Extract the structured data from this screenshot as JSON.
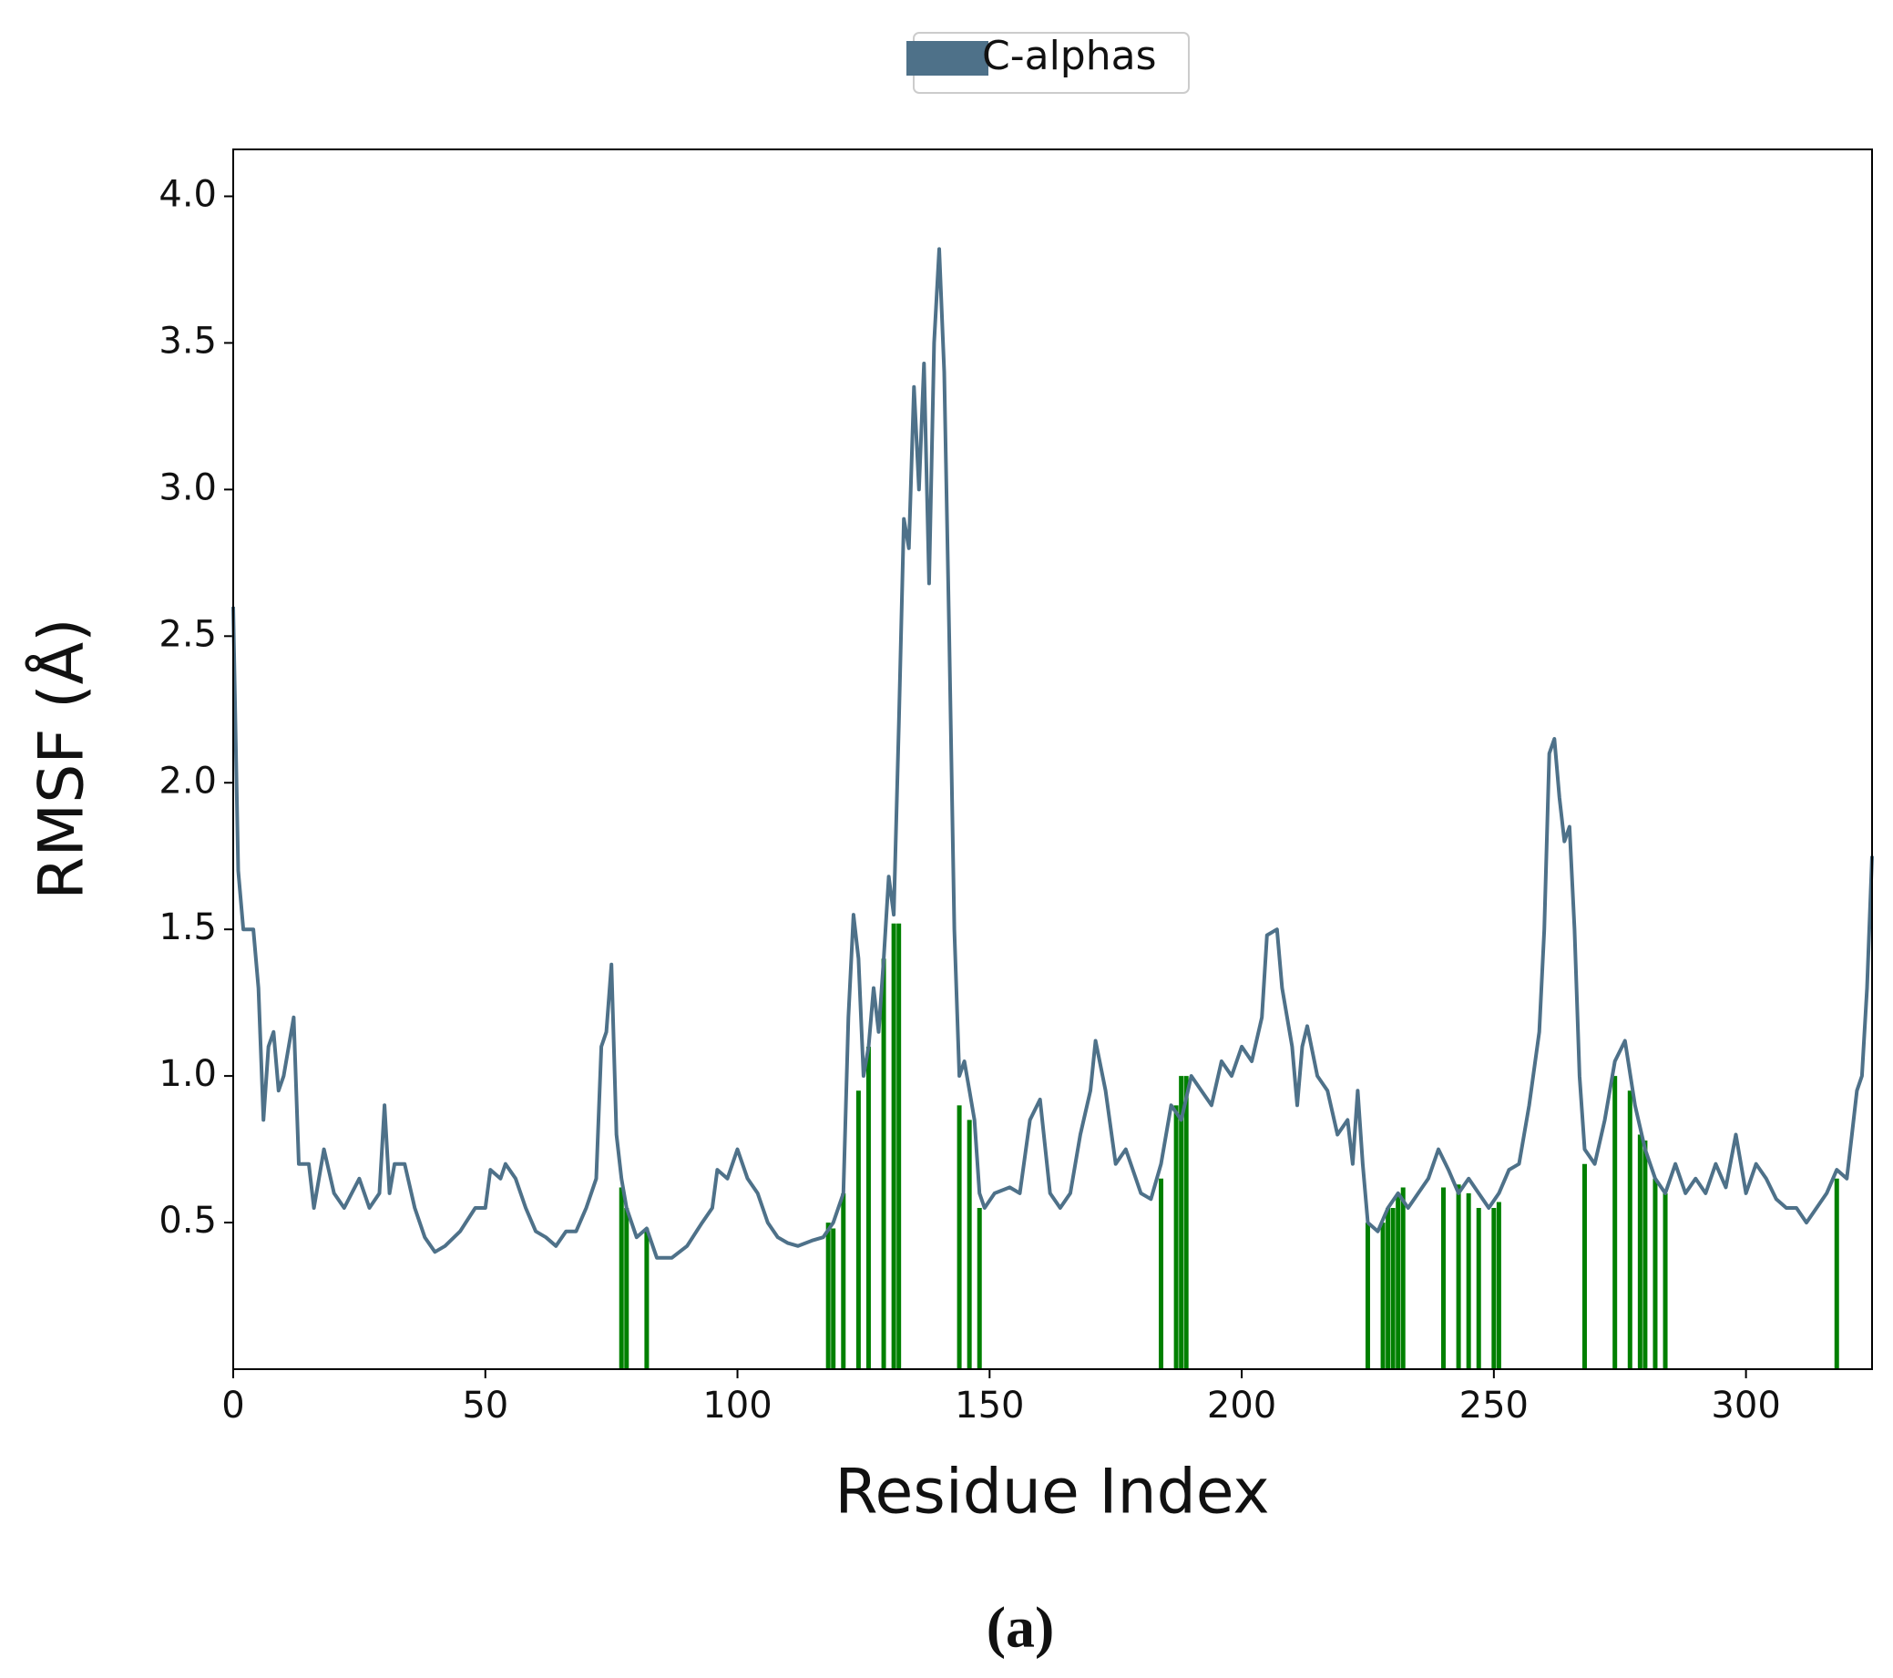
{
  "chart_data": {
    "type": "line",
    "xlabel": "Residue Index",
    "ylabel": "RMSF (Å)",
    "caption": "(a)",
    "xlim": [
      0,
      325
    ],
    "xticks": [
      0,
      50,
      100,
      150,
      200,
      250,
      300
    ],
    "ylim": [
      0,
      4.16
    ],
    "yticks": [
      0.5,
      {
        "value": 1,
        "label": "1.0"
      },
      1.5,
      {
        "value": 2,
        "label": "2.0"
      },
      2.5,
      {
        "value": 3,
        "label": "3.0"
      },
      3.5,
      {
        "value": 4,
        "label": "4.0"
      }
    ],
    "x": [
      0,
      1,
      2,
      4,
      5,
      6,
      7,
      8,
      9,
      10,
      12,
      13,
      15,
      16,
      18,
      20,
      22,
      25,
      27,
      29,
      30,
      31,
      32,
      34,
      36,
      38,
      40,
      42,
      45,
      48,
      50,
      51,
      53,
      54,
      56,
      58,
      60,
      62,
      64,
      66,
      68,
      70,
      72,
      73,
      74,
      75,
      76,
      77,
      78,
      80,
      82,
      84,
      87,
      90,
      93,
      95,
      96,
      98,
      100,
      102,
      104,
      106,
      108,
      110,
      112,
      115,
      117,
      119,
      121,
      122,
      123,
      124,
      125,
      126,
      127,
      128,
      129,
      130,
      131,
      132,
      133,
      134,
      135,
      136,
      137,
      138,
      139,
      140,
      141,
      142,
      143,
      144,
      145,
      146,
      147,
      148,
      149,
      151,
      154,
      156,
      158,
      160,
      162,
      164,
      166,
      168,
      170,
      171,
      173,
      175,
      177,
      180,
      182,
      184,
      186,
      188,
      190,
      192,
      194,
      196,
      198,
      200,
      202,
      204,
      205,
      207,
      208,
      210,
      211,
      212,
      213,
      215,
      217,
      219,
      221,
      222,
      223,
      224,
      225,
      227,
      229,
      231,
      233,
      235,
      237,
      239,
      241,
      243,
      245,
      247,
      249,
      251,
      253,
      255,
      257,
      259,
      260,
      261,
      262,
      263,
      264,
      265,
      266,
      267,
      268,
      270,
      272,
      274,
      276,
      278,
      280,
      282,
      284,
      286,
      288,
      290,
      292,
      294,
      296,
      298,
      300,
      302,
      304,
      306,
      308,
      310,
      312,
      314,
      316,
      318,
      320,
      321,
      322,
      323,
      324,
      325
    ],
    "series": [
      {
        "name": "C-alphas",
        "color": "#4e7189",
        "values": [
          2.6,
          1.7,
          1.5,
          1.5,
          1.3,
          0.85,
          1.1,
          1.15,
          0.95,
          1.0,
          1.2,
          0.7,
          0.7,
          0.55,
          0.75,
          0.6,
          0.55,
          0.65,
          0.55,
          0.6,
          0.9,
          0.6,
          0.7,
          0.7,
          0.55,
          0.45,
          0.4,
          0.42,
          0.47,
          0.55,
          0.55,
          0.68,
          0.65,
          0.7,
          0.65,
          0.55,
          0.47,
          0.45,
          0.42,
          0.47,
          0.47,
          0.55,
          0.65,
          1.1,
          1.15,
          1.38,
          0.8,
          0.65,
          0.55,
          0.45,
          0.48,
          0.38,
          0.38,
          0.42,
          0.5,
          0.55,
          0.68,
          0.65,
          0.75,
          0.65,
          0.6,
          0.5,
          0.45,
          0.43,
          0.42,
          0.44,
          0.45,
          0.5,
          0.6,
          1.2,
          1.55,
          1.4,
          1.0,
          1.1,
          1.3,
          1.15,
          1.4,
          1.68,
          1.55,
          2.2,
          2.9,
          2.8,
          3.35,
          3.0,
          3.43,
          2.68,
          3.5,
          3.82,
          3.4,
          2.5,
          1.5,
          1.0,
          1.05,
          0.95,
          0.85,
          0.6,
          0.55,
          0.6,
          0.62,
          0.6,
          0.85,
          0.92,
          0.6,
          0.55,
          0.6,
          0.8,
          0.95,
          1.12,
          0.95,
          0.7,
          0.75,
          0.6,
          0.58,
          0.7,
          0.9,
          0.85,
          1.0,
          0.95,
          0.9,
          1.05,
          1.0,
          1.1,
          1.05,
          1.2,
          1.48,
          1.5,
          1.3,
          1.1,
          0.9,
          1.1,
          1.17,
          1.0,
          0.95,
          0.8,
          0.85,
          0.7,
          0.95,
          0.7,
          0.5,
          0.47,
          0.55,
          0.6,
          0.55,
          0.6,
          0.65,
          0.75,
          0.68,
          0.6,
          0.65,
          0.6,
          0.55,
          0.6,
          0.68,
          0.7,
          0.9,
          1.15,
          1.5,
          2.1,
          2.15,
          1.95,
          1.8,
          1.85,
          1.5,
          1.0,
          0.75,
          0.7,
          0.85,
          1.05,
          1.12,
          0.9,
          0.75,
          0.65,
          0.6,
          0.7,
          0.6,
          0.65,
          0.6,
          0.7,
          0.62,
          0.8,
          0.6,
          0.7,
          0.65,
          0.58,
          0.55,
          0.55,
          0.5,
          0.55,
          0.6,
          0.68,
          0.65,
          0.8,
          0.95,
          1.0,
          1.3,
          1.75
        ]
      }
    ],
    "contacts": {
      "color": "#008000",
      "x": [
        77,
        78,
        82,
        118,
        119,
        121,
        124,
        126,
        129,
        131,
        132,
        144,
        146,
        148,
        184,
        187,
        188,
        189,
        225,
        228,
        229,
        230,
        231,
        232,
        240,
        243,
        245,
        247,
        250,
        251,
        268,
        274,
        277,
        279,
        280,
        282,
        284,
        318
      ],
      "values": [
        0.62,
        0.55,
        0.48,
        0.5,
        0.48,
        0.6,
        0.95,
        1.1,
        1.4,
        1.52,
        1.52,
        0.9,
        0.85,
        0.55,
        0.65,
        0.9,
        1.0,
        1.0,
        0.5,
        0.5,
        0.55,
        0.55,
        0.6,
        0.62,
        0.62,
        0.63,
        0.6,
        0.55,
        0.55,
        0.57,
        0.7,
        1.0,
        0.95,
        0.8,
        0.78,
        0.65,
        0.6,
        0.65
      ]
    }
  }
}
